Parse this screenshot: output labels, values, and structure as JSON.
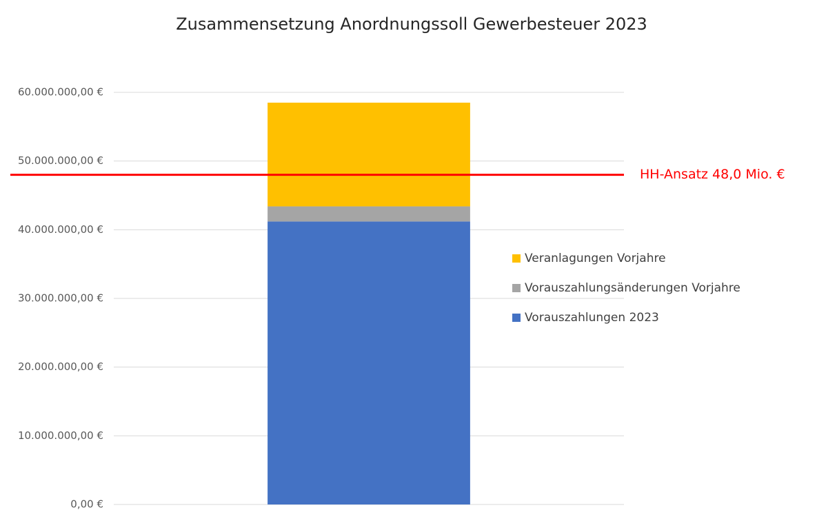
{
  "chart_data": {
    "type": "stacked_bar",
    "title": "Zusammensetzung Anordnungssoll Gewerbesteuer 2023",
    "categories": [
      null
    ],
    "series": [
      {
        "name": "Vorauszahlungen 2023",
        "color": "#4472c4",
        "values": [
          41200000
        ]
      },
      {
        "name": "Vorauszahlungsänderungen Vorjahre",
        "color": "#a5a5a5",
        "values": [
          2200000
        ]
      },
      {
        "name": "Veranlagungen Vorjahre",
        "color": "#ffc000",
        "values": [
          15100000
        ]
      }
    ],
    "ylim": [
      0,
      60000000
    ],
    "yticks": [
      {
        "value": 0,
        "label": "0,00 €"
      },
      {
        "value": 10000000,
        "label": "10.000.000,00 €"
      },
      {
        "value": 20000000,
        "label": "20.000.000,00 €"
      },
      {
        "value": 30000000,
        "label": "30.000.000,00 €"
      },
      {
        "value": 40000000,
        "label": "40.000.000,00 €"
      },
      {
        "value": 50000000,
        "label": "50.000.000,00 €"
      },
      {
        "value": 60000000,
        "label": "60.000.000,00 €"
      }
    ],
    "grid": true,
    "legend_position": "right",
    "reference_line": {
      "value": 48000000,
      "label": "HH-Ansatz 48,0 Mio. €",
      "color": "#ff0000"
    }
  }
}
